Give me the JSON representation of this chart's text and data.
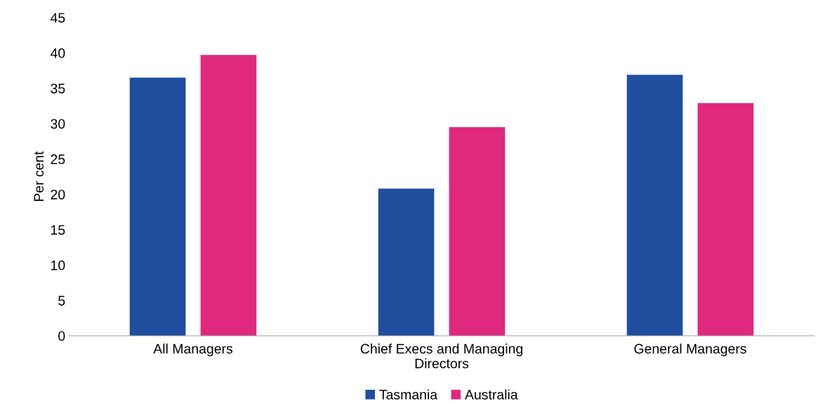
{
  "chart_data": {
    "type": "bar",
    "ylabel": "Per cent",
    "categories": [
      "All Managers",
      "Chief Execs and Managing\nDirectors",
      "General Managers"
    ],
    "series": [
      {
        "name": "Tasmania",
        "color": "#1f4e9f",
        "values": [
          36.5,
          20.8,
          36.9
        ]
      },
      {
        "name": "Australia",
        "color": "#e0287f",
        "values": [
          39.7,
          29.5,
          32.9
        ]
      }
    ],
    "ylim": [
      0,
      45
    ],
    "yticks": [
      0,
      5,
      10,
      15,
      20,
      25,
      30,
      35,
      40,
      45
    ],
    "grid": false,
    "legend": "bottom"
  }
}
